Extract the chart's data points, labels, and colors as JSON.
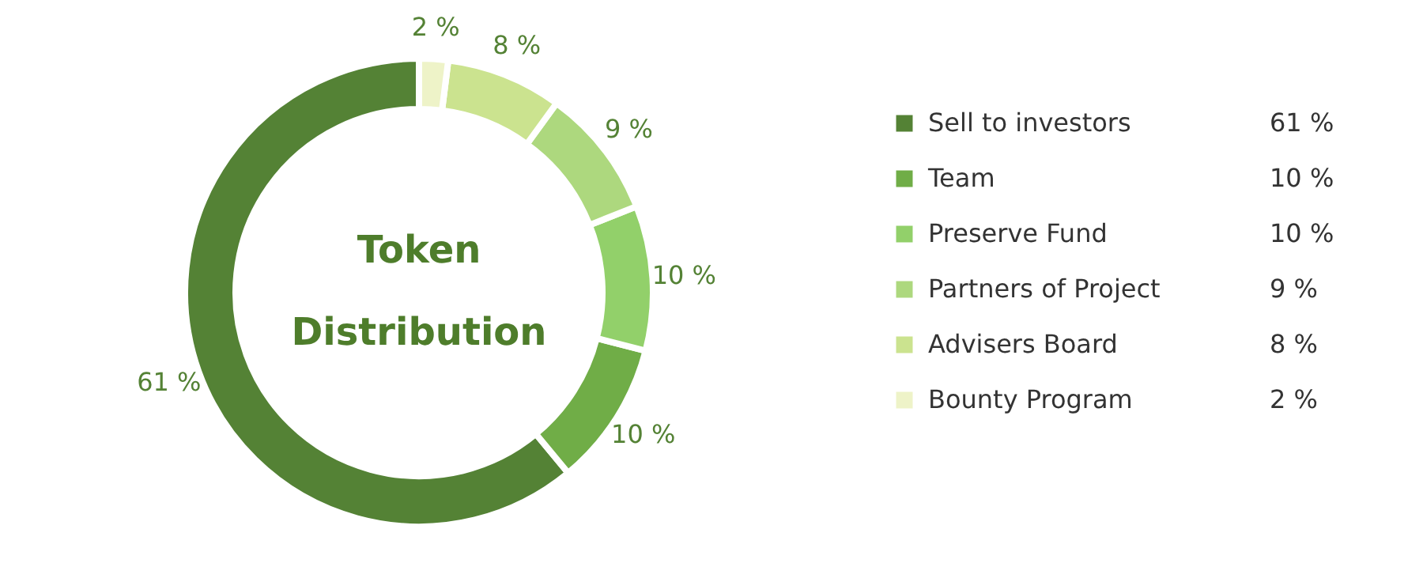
{
  "chart_data": {
    "type": "donut",
    "title": "Token Distribution",
    "categories": [
      "Sell to investors",
      "Team",
      "Preserve Fund",
      "Partners of Project",
      "Advisers Board",
      "Bounty Program"
    ],
    "values": [
      61,
      10,
      10,
      9,
      8,
      2
    ],
    "value_labels": [
      "61 %",
      "10 %",
      "10 %",
      "9 %",
      "8 %",
      "2 %"
    ],
    "colors": [
      "#548235",
      "#70ad47",
      "#92d06a",
      "#add87e",
      "#cbe38f",
      "#eef3c8"
    ],
    "legend": "right"
  }
}
